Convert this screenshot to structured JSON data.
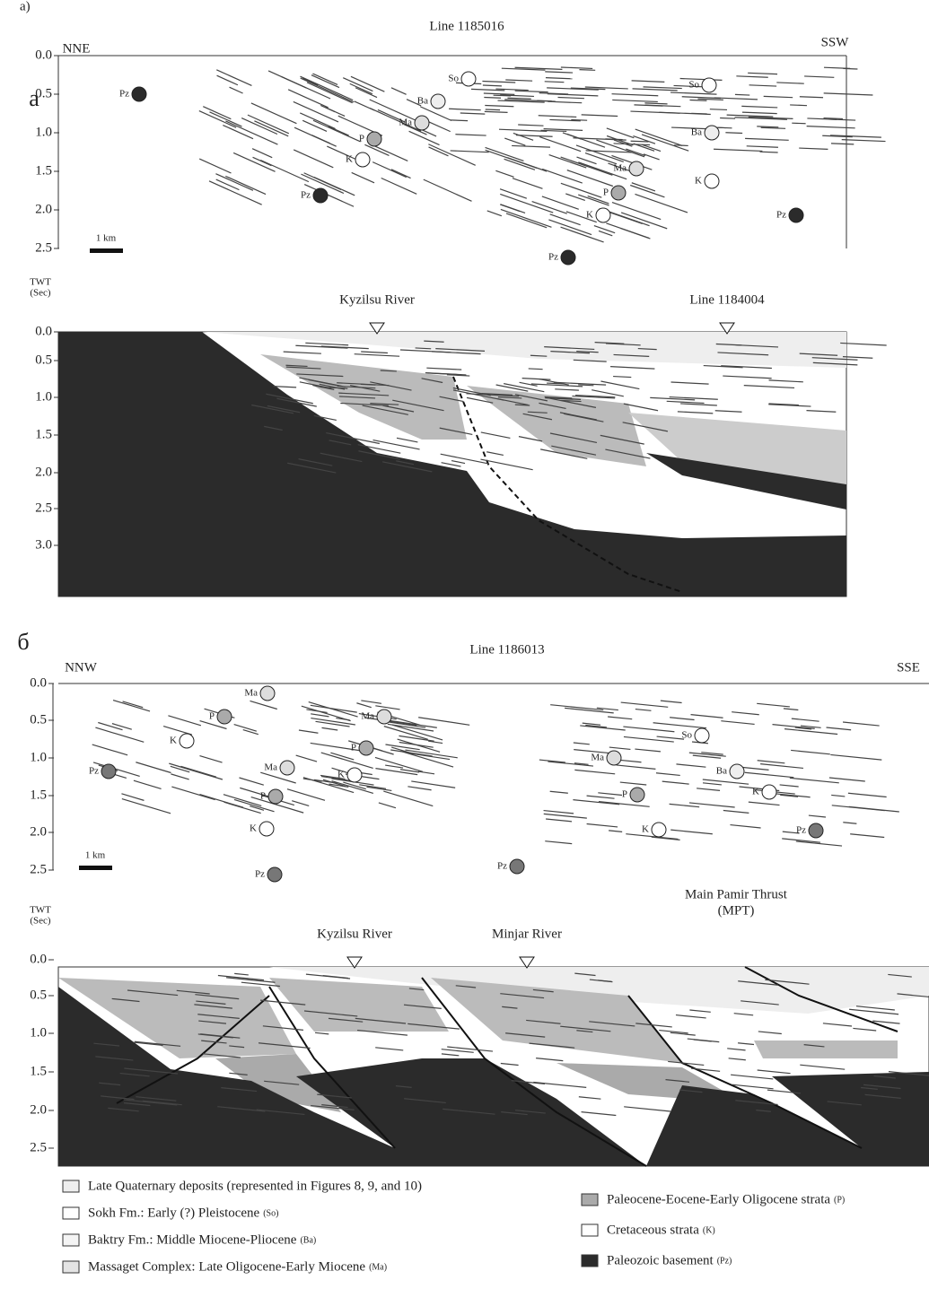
{
  "figure_label": "a)",
  "panels": [
    {
      "label": "а",
      "title": "Line 1185016",
      "left_direction": "NNE",
      "right_direction": "SSW",
      "upper_ticks": [
        "0.0",
        "0.5",
        "1.0",
        "1.5",
        "2.0",
        "2.5"
      ],
      "scale_bar": "1 km",
      "markers": [
        "Pz",
        "So",
        "Ba",
        "Ma",
        "P",
        "K",
        "Pz",
        "Pz",
        "So",
        "Ba",
        "Ma",
        "P",
        "K",
        "K",
        "Pz"
      ],
      "lower_axis_title": [
        "TWT",
        "(Sec)"
      ],
      "lower_ticks": [
        "0.0",
        "0.5",
        "1.0",
        "1.5",
        "2.0",
        "2.5",
        "3.0"
      ],
      "annotations": [
        "Kyzilsu River",
        "Line 1184004"
      ]
    },
    {
      "label": "б",
      "title": "Line 1186013",
      "left_direction": "NNW",
      "right_direction": "SSE",
      "upper_ticks": [
        "0.0",
        "0.5",
        "1.0",
        "1.5",
        "2.0",
        "2.5"
      ],
      "scale_bar": "1 km",
      "markers": [
        "Ma",
        "P",
        "K",
        "Pz",
        "Ma",
        "Ma",
        "P",
        "K",
        "P",
        "K",
        "Pz",
        "Pz",
        "So",
        "Ba",
        "Ma",
        "P",
        "K",
        "K",
        "Pz"
      ],
      "lower_axis_title": [
        "TWT",
        "(Sec)"
      ],
      "lower_ticks": [
        "0.0",
        "0.5",
        "1.0",
        "1.5",
        "2.0",
        "2.5"
      ],
      "annotations": [
        "Kyzilsu River",
        "Minjar River",
        "Main Pamir Thrust",
        "(MPT)"
      ]
    }
  ],
  "legend": [
    {
      "text": "Late Quaternary deposits (represented in Figures 8, 9, and 10)"
    },
    {
      "text": "Sokh Fm.: Early (?) Pleistocene",
      "code": "(So)"
    },
    {
      "text": "Baktry Fm.: Middle Miocene-Pliocene",
      "code": "(Ba)"
    },
    {
      "text": "Massaget Complex: Late Oligocene-Early Miocene",
      "code": "(Ma)"
    },
    {
      "text": "Paleocene-Eocene-Early Oligocene strata",
      "code": "(P)"
    },
    {
      "text": "Cretaceous strata",
      "code": "(K)"
    },
    {
      "text": "Paleozoic basement",
      "code": "(Pz)"
    }
  ]
}
